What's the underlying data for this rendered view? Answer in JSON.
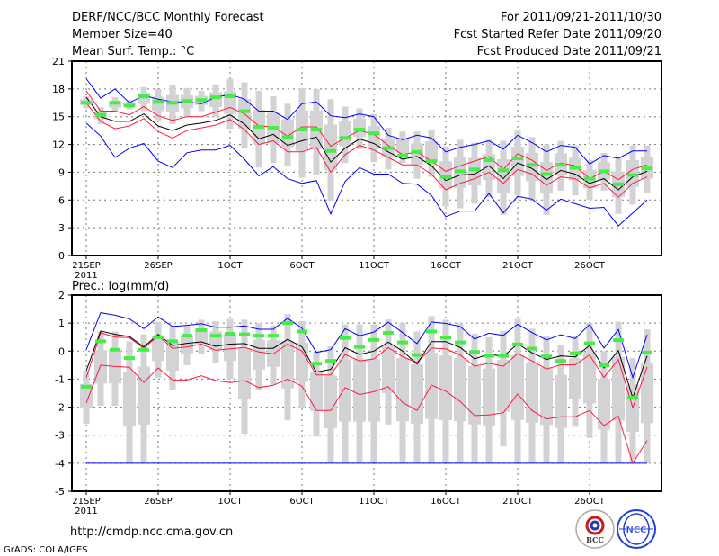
{
  "header": {
    "title": "DERF/NCC/BCC Monthly Forecast",
    "member_size": "Member Size=40",
    "variable": "Mean Surf. Temp.: °C",
    "period": "For 2011/09/21-2011/10/30",
    "started": "Fcst Started Refer Date 2011/09/20",
    "produced": "Fcst Produced Date 2011/09/21"
  },
  "footer": {
    "url": "http://cmdp.ncc.cma.gov.cn",
    "credit": "GrADS: COLA/IGES",
    "logo_bcc": "BCC",
    "logo_ncc": "NCC"
  },
  "colors": {
    "mean": "#000000",
    "spread": "#ff1a3c",
    "extreme": "#0000ff",
    "median": "#44ee44",
    "box": "#d3d3d6"
  },
  "chart_data": [
    {
      "type": "box-line",
      "title": "Mean Surf. Temp.: °C",
      "ylim": [
        0,
        21
      ],
      "yticks": [
        0,
        3,
        6,
        9,
        12,
        15,
        18,
        21
      ],
      "xtick_labels": [
        "21SEP",
        "26SEP",
        "1OCT",
        "6OCT",
        "11OCT",
        "16OCT",
        "21OCT",
        "26OCT"
      ],
      "xtick_days": [
        0,
        5,
        10,
        15,
        20,
        25,
        30,
        35
      ],
      "year_label": "2011",
      "days": 40,
      "series": {
        "mean": [
          17.1,
          15.0,
          14.5,
          14.5,
          15.3,
          14.0,
          13.5,
          14.1,
          14.3,
          14.6,
          15.2,
          14.2,
          12.6,
          13.1,
          11.9,
          12.4,
          12.8,
          10.1,
          11.6,
          12.6,
          12.1,
          11.2,
          10.4,
          10.7,
          9.7,
          8.1,
          8.7,
          8.8,
          9.7,
          8.3,
          10.0,
          9.4,
          8.2,
          9.2,
          8.8,
          7.8,
          8.3,
          7.1,
          8.5,
          9.1
        ],
        "upper": [
          17.8,
          15.6,
          15.6,
          15.2,
          16.1,
          15.1,
          14.6,
          15.0,
          15.0,
          15.5,
          16.0,
          15.3,
          14.0,
          13.9,
          12.9,
          13.9,
          13.9,
          11.8,
          12.7,
          13.5,
          13.1,
          11.9,
          10.9,
          11.2,
          10.2,
          9.1,
          9.7,
          10.2,
          10.7,
          9.3,
          11.0,
          10.3,
          9.2,
          10.0,
          9.7,
          8.3,
          9.1,
          8.2,
          9.3,
          9.8
        ],
        "lower": [
          16.5,
          14.5,
          13.7,
          14.0,
          14.8,
          13.4,
          12.7,
          13.5,
          13.8,
          14.1,
          14.7,
          13.6,
          12.0,
          12.4,
          11.2,
          11.2,
          11.7,
          9.0,
          10.9,
          11.9,
          11.4,
          10.6,
          9.8,
          9.8,
          8.8,
          7.1,
          7.8,
          8.3,
          9.0,
          7.8,
          9.3,
          8.8,
          7.6,
          8.5,
          8.3,
          7.3,
          7.8,
          6.3,
          7.8,
          8.5
        ],
        "max": [
          19.1,
          17.0,
          18.0,
          16.5,
          17.3,
          16.9,
          16.6,
          16.6,
          16.4,
          17.1,
          17.4,
          16.9,
          15.6,
          15.6,
          14.7,
          16.4,
          16.6,
          15.1,
          14.9,
          15.3,
          15.0,
          13.0,
          12.5,
          13.0,
          12.7,
          11.2,
          11.7,
          12.0,
          12.4,
          11.5,
          13.0,
          12.2,
          11.2,
          11.9,
          11.7,
          9.9,
          10.8,
          10.5,
          11.3,
          11.3
        ],
        "min": [
          14.3,
          12.9,
          10.6,
          11.6,
          12.1,
          10.2,
          9.5,
          11.1,
          11.4,
          11.4,
          11.9,
          10.4,
          8.6,
          9.6,
          8.3,
          7.8,
          8.1,
          4.5,
          8.0,
          9.5,
          8.8,
          8.8,
          7.8,
          7.7,
          6.5,
          4.2,
          4.8,
          4.8,
          6.7,
          4.6,
          6.4,
          6.1,
          4.9,
          6.1,
          5.6,
          5.1,
          5.2,
          3.2,
          4.6,
          6.0
        ],
        "median": [
          16.5,
          15.2,
          16.5,
          16.2,
          17.2,
          16.6,
          16.5,
          16.7,
          16.8,
          17.1,
          17.2,
          15.6,
          13.9,
          13.8,
          12.8,
          13.6,
          13.6,
          11.3,
          12.7,
          13.6,
          13.2,
          11.6,
          10.8,
          11.2,
          10.2,
          8.5,
          9.1,
          9.3,
          10.3,
          9.2,
          10.5,
          9.8,
          8.8,
          9.8,
          9.5,
          8.3,
          9.1,
          7.7,
          8.7,
          9.4
        ],
        "range_low": [
          15.9,
          14.2,
          15.5,
          15.8,
          15.6,
          14.6,
          14.2,
          15.0,
          15.6,
          15.0,
          13.7,
          11.6,
          9.5,
          10.0,
          9.7,
          8.4,
          8.7,
          5.9,
          10.0,
          11.5,
          10.1,
          9.3,
          10.0,
          8.3,
          8.5,
          5.3,
          5.1,
          5.6,
          6.3,
          4.4,
          6.5,
          6.0,
          4.4,
          7.0,
          6.5,
          6.0,
          7.0,
          4.5,
          5.5,
          6.8
        ],
        "range_high": [
          17.2,
          16.0,
          17.1,
          16.8,
          18.2,
          18.0,
          18.4,
          18.1,
          17.8,
          18.5,
          19.1,
          18.7,
          17.8,
          17.2,
          16.4,
          18.1,
          18.0,
          16.9,
          16.1,
          15.9,
          15.3,
          13.8,
          13.4,
          13.4,
          13.6,
          11.8,
          12.5,
          12.2,
          12.5,
          12.4,
          13.5,
          12.8,
          12.0,
          12.4,
          11.9,
          10.3,
          11.1,
          10.6,
          11.9,
          11.9
        ]
      }
    },
    {
      "type": "box-line",
      "title": "Prec.: log(mm/d)",
      "ylim": [
        -5,
        2
      ],
      "yticks": [
        -5,
        -4,
        -3,
        -2,
        -1,
        0,
        1,
        2
      ],
      "xtick_labels": [
        "21SEP",
        "26SEP",
        "1OCT",
        "6OCT",
        "11OCT",
        "16OCT",
        "21OCT",
        "26OCT"
      ],
      "xtick_days": [
        0,
        5,
        10,
        15,
        20,
        25,
        30,
        35
      ],
      "year_label": "2011",
      "days": 40,
      "series": {
        "mean": [
          -0.7,
          0.72,
          0.6,
          0.52,
          0.15,
          0.6,
          0.2,
          0.28,
          0.33,
          0.17,
          0.25,
          0.27,
          0.1,
          0.1,
          0.42,
          0.15,
          -0.75,
          -0.65,
          0.12,
          -0.12,
          0.0,
          0.32,
          0.0,
          -0.46,
          0.34,
          0.34,
          0.13,
          -0.28,
          -0.11,
          -0.19,
          0.26,
          -0.06,
          -0.3,
          -0.17,
          -0.21,
          0.2,
          -0.6,
          0.02,
          -1.67,
          -0.17
        ],
        "upper": [
          -0.95,
          0.65,
          0.5,
          0.48,
          0.1,
          0.55,
          0.1,
          0.15,
          0.25,
          0.03,
          0.08,
          0.13,
          -0.03,
          -0.1,
          0.25,
          0.0,
          -0.85,
          -0.85,
          -0.12,
          -0.35,
          -0.28,
          0.12,
          -0.2,
          -0.41,
          0.11,
          0.08,
          -0.14,
          -0.54,
          -0.43,
          -0.54,
          -0.09,
          -0.35,
          -0.64,
          -0.49,
          -0.49,
          -0.14,
          -0.94,
          -0.3,
          -2.02,
          -0.57
        ],
        "lower": [
          -1.85,
          -0.5,
          -0.55,
          -0.58,
          -1.12,
          -0.6,
          -1.03,
          -1.03,
          -0.88,
          -1.05,
          -1.12,
          -1.05,
          -1.3,
          -1.22,
          -1.0,
          -1.25,
          -2.12,
          -2.12,
          -1.3,
          -1.55,
          -1.45,
          -1.27,
          -1.83,
          -2.12,
          -1.21,
          -1.43,
          -1.8,
          -2.3,
          -2.28,
          -2.2,
          -1.53,
          -2.12,
          -2.42,
          -2.34,
          -2.34,
          -2.12,
          -2.66,
          -2.32,
          -4.0,
          -3.19
        ],
        "max": [
          0.05,
          1.37,
          1.28,
          1.15,
          0.8,
          1.22,
          0.88,
          0.92,
          0.98,
          0.85,
          0.85,
          0.9,
          0.78,
          0.78,
          1.17,
          0.82,
          -0.05,
          0.05,
          0.8,
          0.55,
          0.68,
          1.03,
          0.66,
          0.27,
          1.04,
          0.99,
          0.88,
          0.43,
          0.64,
          0.56,
          0.96,
          0.66,
          0.4,
          0.58,
          0.45,
          0.95,
          0.11,
          0.77,
          -0.94,
          0.58
        ],
        "min": [
          -4,
          -4,
          -4,
          -4,
          -4,
          -4,
          -4,
          -4,
          -4,
          -4,
          -4,
          -4,
          -4,
          -4,
          -4,
          -4,
          -4,
          -4,
          -4,
          -4,
          -4,
          -4,
          -4,
          -4,
          -4,
          -4,
          -4,
          -4,
          -4,
          -4,
          -4,
          -4,
          -4,
          -4,
          -4,
          -4,
          -4,
          -4,
          -4,
          -4
        ],
        "median": [
          -1.27,
          0.35,
          0.05,
          -0.25,
          0.05,
          0.5,
          0.35,
          0.55,
          0.75,
          0.55,
          0.62,
          0.6,
          0.55,
          0.55,
          1.0,
          0.7,
          -0.45,
          -0.35,
          0.47,
          0.15,
          0.4,
          0.65,
          0.31,
          -0.14,
          0.7,
          0.48,
          0.31,
          -0.03,
          -0.17,
          -0.17,
          0.24,
          0.09,
          -0.19,
          -0.35,
          -0.08,
          0.28,
          -0.51,
          0.39,
          -1.66,
          -0.05
        ],
        "range_low": [
          -2.6,
          -1.95,
          -1.95,
          -4,
          -4,
          -0.95,
          -1.38,
          -0.5,
          -0.12,
          -0.42,
          -1.0,
          -2.95,
          -1.38,
          -1.2,
          -2.47,
          -2.02,
          -3.05,
          -4,
          -4,
          -4,
          -4,
          -2.62,
          -4,
          -4,
          -4,
          -4,
          -4,
          -4,
          -4,
          -3.4,
          -4,
          -4,
          -4,
          -4,
          -2.7,
          -3.1,
          -4,
          -4,
          -4,
          -4
        ],
        "range_high": [
          -0.7,
          0.7,
          0.7,
          0.35,
          0.6,
          1.05,
          0.9,
          0.9,
          1.12,
          1.07,
          1.15,
          1.12,
          1.0,
          0.92,
          1.32,
          1.07,
          0.0,
          0.17,
          0.95,
          0.95,
          0.95,
          1.13,
          1.0,
          0.7,
          1.25,
          1.12,
          1.0,
          0.62,
          0.5,
          0.72,
          1.15,
          0.8,
          0.55,
          0.2,
          0.55,
          1.0,
          0.0,
          1.05,
          -0.25,
          0.78
        ]
      }
    }
  ]
}
